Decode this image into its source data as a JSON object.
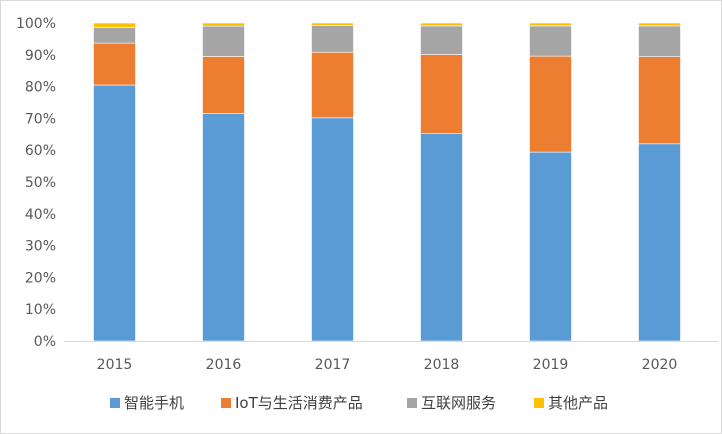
{
  "chart_data": {
    "type": "bar",
    "stacked": true,
    "percent": true,
    "categories": [
      "2015",
      "2016",
      "2017",
      "2018",
      "2019",
      "2020"
    ],
    "series": [
      {
        "name": "智能手机",
        "color": "#5b9bd5",
        "values": [
          80.5,
          71.5,
          70.2,
          65.2,
          59.4,
          62.0
        ]
      },
      {
        "name": "IoT与生活消费产品",
        "color": "#ed7d31",
        "values": [
          13.2,
          18.0,
          20.6,
          24.9,
          30.2,
          27.4
        ]
      },
      {
        "name": "互联网服务",
        "color": "#a5a5a5",
        "values": [
          4.9,
          9.5,
          8.4,
          9.0,
          9.5,
          9.7
        ]
      },
      {
        "name": "其他产品",
        "color": "#ffc000",
        "values": [
          1.4,
          1.0,
          0.8,
          0.9,
          0.9,
          0.9
        ]
      }
    ],
    "yticks": [
      "0%",
      "10%",
      "20%",
      "30%",
      "40%",
      "50%",
      "60%",
      "70%",
      "80%",
      "90%",
      "100%"
    ],
    "ylim": [
      0,
      100
    ],
    "grid": false,
    "legend_position": "bottom",
    "title": "",
    "xlabel": "",
    "ylabel": ""
  }
}
